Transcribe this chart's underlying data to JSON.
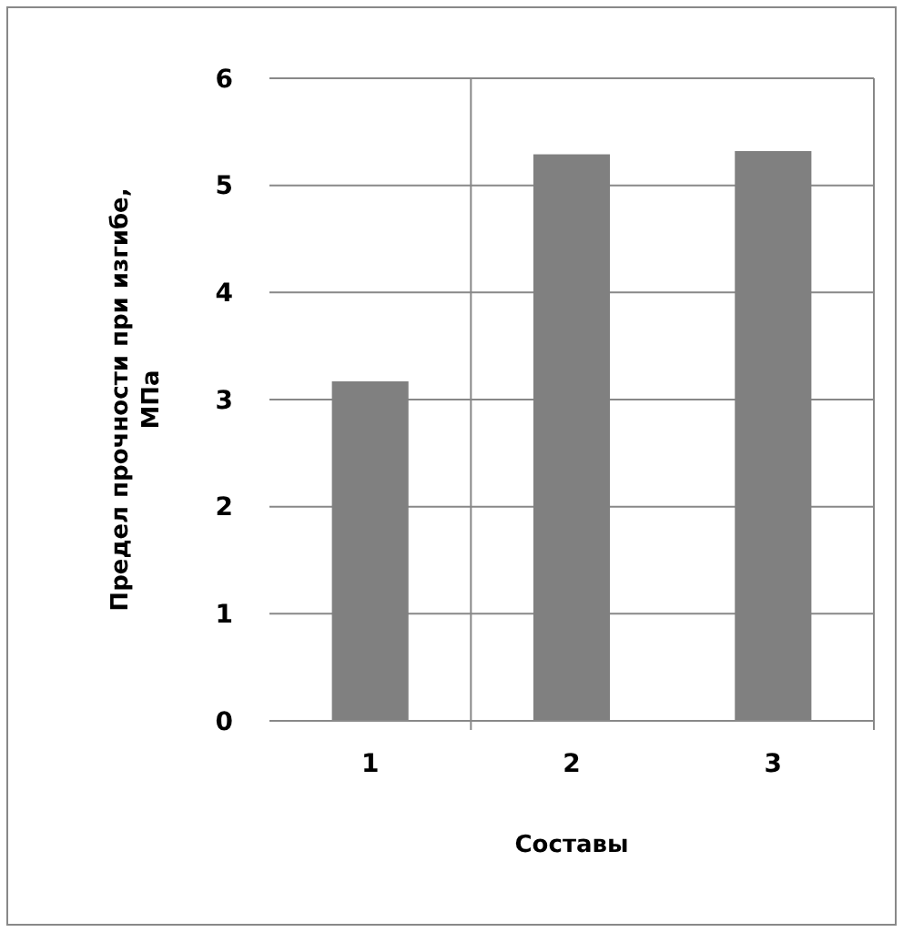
{
  "chart_data": {
    "type": "bar",
    "xlabel": "Составы",
    "ylabel": "Предел прочности при изгибе, МПа",
    "categories": [
      "1",
      "2",
      "3"
    ],
    "values": [
      3.17,
      5.29,
      5.32
    ],
    "color": "#808080",
    "ylim": [
      0,
      6
    ],
    "yticks": [
      0,
      1,
      2,
      3,
      4,
      5,
      6
    ],
    "grid": true
  }
}
